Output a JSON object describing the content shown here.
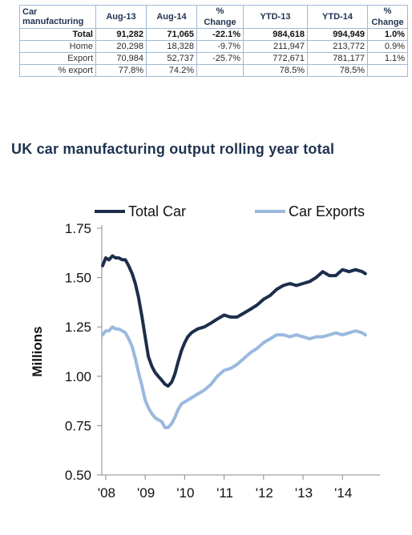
{
  "table": {
    "headers": [
      "Car manufacturing",
      "Aug-13",
      "Aug-14",
      "% Change",
      "YTD-13",
      "YTD-14",
      "% Change"
    ],
    "rows": [
      {
        "label": "Total",
        "cells": [
          "91,282",
          "71,065",
          "-22.1%",
          "984,618",
          "994,949",
          "1.0%"
        ]
      },
      {
        "label": "Home",
        "cells": [
          "20,298",
          "18,328",
          "-9.7%",
          "211,947",
          "213,772",
          "0.9%"
        ]
      },
      {
        "label": "Export",
        "cells": [
          "70,984",
          "52,737",
          "-25.7%",
          "772,671",
          "781,177",
          "1.1%"
        ]
      },
      {
        "label": "% export",
        "cells": [
          "77.8%",
          "74.2%",
          "",
          "78.5%",
          "78.5%",
          ""
        ]
      }
    ]
  },
  "chart_data": {
    "type": "line",
    "title": "UK car manufacturing output rolling year total",
    "xlabel": "",
    "ylabel": "Millions",
    "ylim": [
      0.5,
      1.75
    ],
    "yticks": [
      "0.50",
      "0.75",
      "1.00",
      "1.25",
      "1.50",
      "1.75"
    ],
    "xtick_labels": [
      "'08",
      "'09",
      "'10",
      "'11",
      "'12",
      "'13",
      "'14"
    ],
    "xlim": [
      2007.9,
      2014.95
    ],
    "grid": false,
    "legend_position": "top",
    "series": [
      {
        "name": "Total Car",
        "color": "#1c2e4a",
        "points": [
          [
            2007.92,
            1.56
          ],
          [
            2008.0,
            1.6
          ],
          [
            2008.08,
            1.59
          ],
          [
            2008.17,
            1.61
          ],
          [
            2008.25,
            1.6
          ],
          [
            2008.33,
            1.6
          ],
          [
            2008.42,
            1.59
          ],
          [
            2008.5,
            1.59
          ],
          [
            2008.58,
            1.56
          ],
          [
            2008.67,
            1.52
          ],
          [
            2008.75,
            1.47
          ],
          [
            2008.83,
            1.4
          ],
          [
            2008.92,
            1.3
          ],
          [
            2009.0,
            1.2
          ],
          [
            2009.08,
            1.1
          ],
          [
            2009.17,
            1.05
          ],
          [
            2009.25,
            1.02
          ],
          [
            2009.33,
            1.0
          ],
          [
            2009.42,
            0.98
          ],
          [
            2009.5,
            0.96
          ],
          [
            2009.58,
            0.95
          ],
          [
            2009.67,
            0.97
          ],
          [
            2009.75,
            1.01
          ],
          [
            2009.83,
            1.07
          ],
          [
            2009.92,
            1.13
          ],
          [
            2010.0,
            1.17
          ],
          [
            2010.08,
            1.2
          ],
          [
            2010.17,
            1.22
          ],
          [
            2010.25,
            1.23
          ],
          [
            2010.33,
            1.24
          ],
          [
            2010.5,
            1.25
          ],
          [
            2010.67,
            1.27
          ],
          [
            2010.83,
            1.29
          ],
          [
            2011.0,
            1.31
          ],
          [
            2011.17,
            1.3
          ],
          [
            2011.33,
            1.3
          ],
          [
            2011.5,
            1.32
          ],
          [
            2011.67,
            1.34
          ],
          [
            2011.83,
            1.36
          ],
          [
            2012.0,
            1.39
          ],
          [
            2012.17,
            1.41
          ],
          [
            2012.33,
            1.44
          ],
          [
            2012.5,
            1.46
          ],
          [
            2012.67,
            1.47
          ],
          [
            2012.83,
            1.46
          ],
          [
            2013.0,
            1.47
          ],
          [
            2013.17,
            1.48
          ],
          [
            2013.33,
            1.5
          ],
          [
            2013.5,
            1.53
          ],
          [
            2013.67,
            1.51
          ],
          [
            2013.83,
            1.51
          ],
          [
            2014.0,
            1.54
          ],
          [
            2014.17,
            1.53
          ],
          [
            2014.33,
            1.54
          ],
          [
            2014.5,
            1.53
          ],
          [
            2014.58,
            1.52
          ]
        ]
      },
      {
        "name": "Car Exports",
        "color": "#9ab9de",
        "points": [
          [
            2007.92,
            1.21
          ],
          [
            2008.0,
            1.23
          ],
          [
            2008.08,
            1.23
          ],
          [
            2008.17,
            1.25
          ],
          [
            2008.25,
            1.24
          ],
          [
            2008.33,
            1.24
          ],
          [
            2008.42,
            1.23
          ],
          [
            2008.5,
            1.22
          ],
          [
            2008.58,
            1.19
          ],
          [
            2008.67,
            1.15
          ],
          [
            2008.75,
            1.09
          ],
          [
            2008.83,
            1.02
          ],
          [
            2008.92,
            0.95
          ],
          [
            2009.0,
            0.88
          ],
          [
            2009.08,
            0.84
          ],
          [
            2009.17,
            0.81
          ],
          [
            2009.25,
            0.79
          ],
          [
            2009.33,
            0.78
          ],
          [
            2009.42,
            0.77
          ],
          [
            2009.5,
            0.74
          ],
          [
            2009.58,
            0.74
          ],
          [
            2009.67,
            0.76
          ],
          [
            2009.75,
            0.79
          ],
          [
            2009.83,
            0.83
          ],
          [
            2009.92,
            0.86
          ],
          [
            2010.0,
            0.87
          ],
          [
            2010.17,
            0.89
          ],
          [
            2010.33,
            0.91
          ],
          [
            2010.5,
            0.93
          ],
          [
            2010.67,
            0.96
          ],
          [
            2010.83,
            1.0
          ],
          [
            2011.0,
            1.03
          ],
          [
            2011.17,
            1.04
          ],
          [
            2011.33,
            1.06
          ],
          [
            2011.5,
            1.09
          ],
          [
            2011.67,
            1.12
          ],
          [
            2011.83,
            1.14
          ],
          [
            2012.0,
            1.17
          ],
          [
            2012.17,
            1.19
          ],
          [
            2012.33,
            1.21
          ],
          [
            2012.5,
            1.21
          ],
          [
            2012.67,
            1.2
          ],
          [
            2012.83,
            1.21
          ],
          [
            2013.0,
            1.2
          ],
          [
            2013.17,
            1.19
          ],
          [
            2013.33,
            1.2
          ],
          [
            2013.5,
            1.2
          ],
          [
            2013.67,
            1.21
          ],
          [
            2013.83,
            1.22
          ],
          [
            2014.0,
            1.21
          ],
          [
            2014.17,
            1.22
          ],
          [
            2014.33,
            1.23
          ],
          [
            2014.5,
            1.22
          ],
          [
            2014.58,
            1.21
          ]
        ]
      }
    ]
  }
}
